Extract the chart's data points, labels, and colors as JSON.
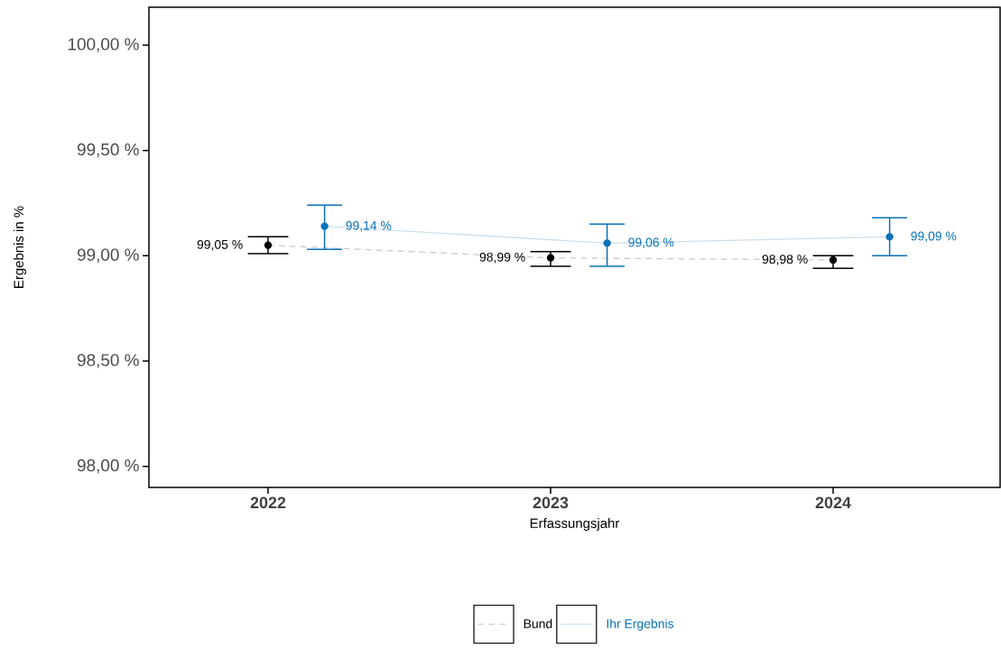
{
  "chart_data": {
    "type": "line",
    "xlabel": "Erfassungsjahr",
    "ylabel": "Ergebnis in %",
    "categories": [
      "2022",
      "2023",
      "2024"
    ],
    "series": [
      {
        "name": "Bund",
        "color": "#000000",
        "line_style": "dashed",
        "values": [
          99.05,
          98.99,
          98.98
        ],
        "errors": [
          [
            99.01,
            99.09
          ],
          [
            98.95,
            99.02
          ],
          [
            98.94,
            99.0
          ]
        ],
        "value_labels": [
          "99,05 %",
          "98,99 %",
          "98,98 %"
        ]
      },
      {
        "name": "Ihr Ergebnis",
        "color": "#0a72b8",
        "line_style": "solid",
        "values": [
          99.14,
          99.06,
          99.09
        ],
        "errors": [
          [
            99.03,
            99.24
          ],
          [
            98.95,
            99.15
          ],
          [
            99.0,
            99.18
          ]
        ],
        "value_labels": [
          "99,14 %",
          "99,06 %",
          "99,09 %"
        ]
      }
    ],
    "ylim": [
      97.9,
      100.18
    ],
    "yticks": [
      {
        "value": 98,
        "label": "98,00 %"
      },
      {
        "value": 98.5,
        "label": "98,50 %"
      },
      {
        "value": 99,
        "label": "99,00 %"
      },
      {
        "value": 99.5,
        "label": "99,50 %"
      },
      {
        "value": 100,
        "label": "100,00 %"
      }
    ],
    "marker": "circle",
    "grid": false,
    "legend": "bottom"
  }
}
